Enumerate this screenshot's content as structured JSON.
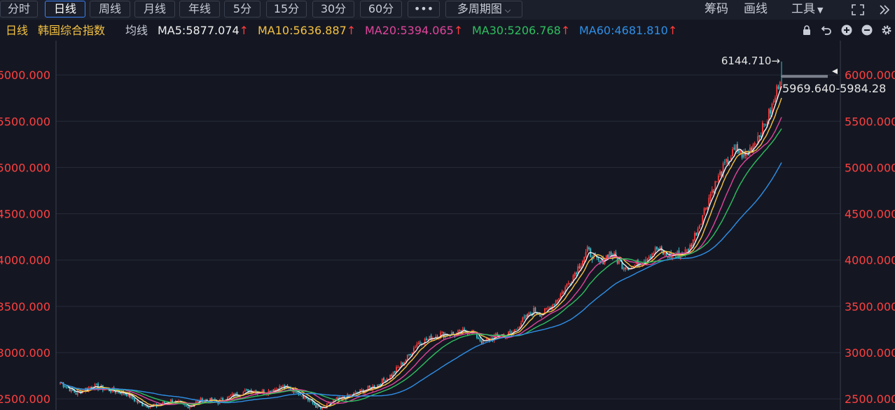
{
  "toolbar": {
    "tabs": [
      {
        "label": "分时",
        "active": false
      },
      {
        "label": "日线",
        "active": true
      },
      {
        "label": "周线",
        "active": false
      },
      {
        "label": "月线",
        "active": false
      },
      {
        "label": "年线",
        "active": false
      },
      {
        "label": "5分",
        "active": false
      },
      {
        "label": "15分",
        "active": false
      },
      {
        "label": "30分",
        "active": false
      },
      {
        "label": "60分",
        "active": false
      },
      {
        "label": "•••",
        "active": false
      },
      {
        "label": "多周期图",
        "active": false
      }
    ],
    "right": {
      "chips": "筹码",
      "draw": "画线",
      "tools": "工具"
    }
  },
  "ma_bar": {
    "period": "日线",
    "index_name": "韩国综合指数",
    "ma_label": "均线",
    "items": [
      {
        "text": "MA5:5877.074",
        "color": "#f0f0f0"
      },
      {
        "text": "MA10:5636.887",
        "color": "#f5c242"
      },
      {
        "text": "MA20:5394.065",
        "color": "#e0459b"
      },
      {
        "text": "MA30:5206.768",
        "color": "#2fbf5f"
      },
      {
        "text": "MA60:4681.810",
        "color": "#2f8fe8"
      }
    ],
    "arrow": "↑"
  },
  "chart_data": {
    "type": "candlestick",
    "ylim": [
      2380,
      6220
    ],
    "yticks": [
      2500,
      3000,
      3500,
      4000,
      4500,
      5000,
      5500,
      6000
    ],
    "ytick_labels": [
      "2500.000",
      "3000.000",
      "3500.000",
      "4000.000",
      "4500.000",
      "5000.000",
      "5500.000",
      "6000.000"
    ],
    "annotations": {
      "high_label": "6144.710→",
      "range_label": "5969.640-5984.28",
      "last_close": 5977
    },
    "close_path": [
      [
        0,
        2680
      ],
      [
        10,
        2560
      ],
      [
        20,
        2640
      ],
      [
        30,
        2600
      ],
      [
        42,
        2560
      ],
      [
        50,
        2450
      ],
      [
        60,
        2420
      ],
      [
        70,
        2480
      ],
      [
        80,
        2420
      ],
      [
        90,
        2490
      ],
      [
        100,
        2470
      ],
      [
        110,
        2540
      ],
      [
        120,
        2590
      ],
      [
        130,
        2570
      ],
      [
        140,
        2630
      ],
      [
        150,
        2590
      ],
      [
        160,
        2450
      ],
      [
        166,
        2380
      ],
      [
        172,
        2470
      ],
      [
        180,
        2510
      ],
      [
        190,
        2580
      ],
      [
        200,
        2640
      ],
      [
        210,
        2760
      ],
      [
        220,
        2950
      ],
      [
        226,
        3100
      ],
      [
        234,
        3150
      ],
      [
        240,
        3200
      ],
      [
        250,
        3200
      ],
      [
        260,
        3240
      ],
      [
        268,
        3110
      ],
      [
        278,
        3190
      ],
      [
        286,
        3200
      ],
      [
        292,
        3330
      ],
      [
        300,
        3450
      ],
      [
        306,
        3420
      ],
      [
        312,
        3520
      ],
      [
        320,
        3700
      ],
      [
        328,
        3920
      ],
      [
        334,
        4100
      ],
      [
        342,
        3960
      ],
      [
        348,
        4080
      ],
      [
        356,
        3950
      ],
      [
        362,
        3920
      ],
      [
        370,
        4010
      ],
      [
        378,
        4120
      ],
      [
        384,
        4050
      ],
      [
        392,
        4060
      ],
      [
        398,
        4100
      ],
      [
        404,
        4350
      ],
      [
        412,
        4720
      ],
      [
        420,
        4990
      ],
      [
        428,
        5200
      ],
      [
        434,
        5120
      ],
      [
        440,
        5280
      ],
      [
        446,
        5450
      ],
      [
        452,
        5700
      ],
      [
        456,
        5977
      ]
    ],
    "high_at_end": 6144.71,
    "series": [
      {
        "name": "MA5",
        "color": "#f0f0f0",
        "last": 5877.074
      },
      {
        "name": "MA10",
        "color": "#f5c242",
        "last": 5636.887
      },
      {
        "name": "MA20",
        "color": "#e0459b",
        "last": 5394.065
      },
      {
        "name": "MA30",
        "color": "#2fbf5f",
        "last": 5206.768
      },
      {
        "name": "MA60",
        "color": "#2f8fe8",
        "last": 4681.81
      }
    ],
    "colors": {
      "up": "#ff3b3b",
      "down": "#36c2cf",
      "grid": "#262b38",
      "axis_text": "#ff4040"
    }
  }
}
